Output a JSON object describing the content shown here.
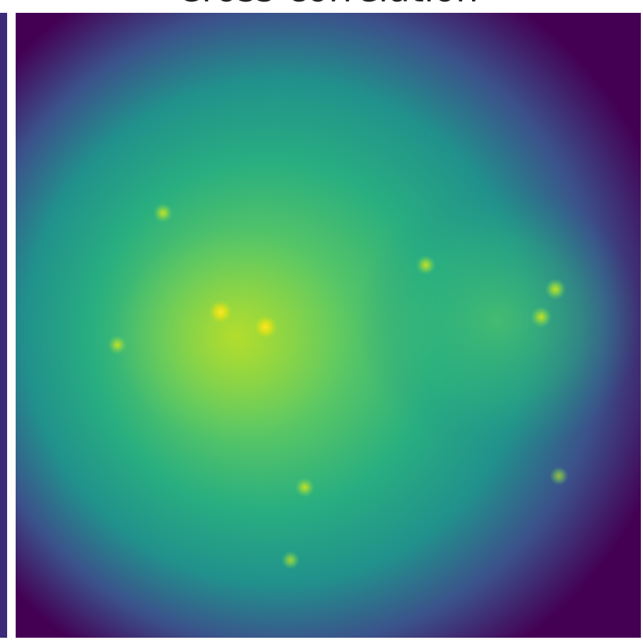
{
  "chart_data": {
    "type": "image",
    "title": "Cross-correlation"
  }
}
